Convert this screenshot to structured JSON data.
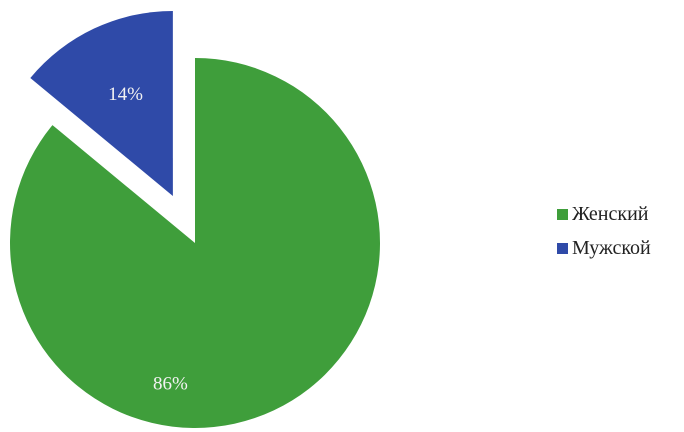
{
  "chart_data": {
    "type": "pie",
    "categories": [
      "Женский",
      "Мужской"
    ],
    "values": [
      86,
      14
    ],
    "labels": [
      "86%",
      "14%"
    ],
    "colors": [
      "#3f9e3b",
      "#2f4aa8"
    ],
    "exploded": [
      false,
      true
    ],
    "title": "",
    "legend_position": "right"
  },
  "legend": {
    "items": [
      {
        "label": "Женский",
        "color": "#3f9e3b"
      },
      {
        "label": "Мужской",
        "color": "#2f4aa8"
      }
    ]
  }
}
